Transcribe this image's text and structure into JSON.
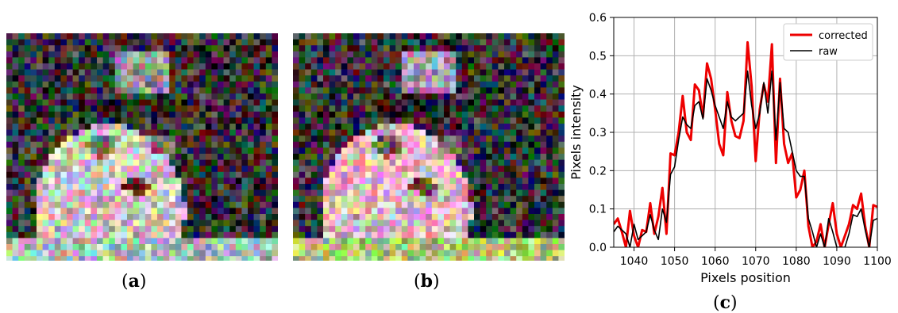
{
  "captions": {
    "a": "a",
    "b": "b",
    "c": "c"
  },
  "images": {
    "a": {
      "description_colors": {
        "bg": "#3b3a3a",
        "face": "#d8cfc6",
        "hat": "#9a9aa0"
      }
    },
    "b": {
      "description_colors": {
        "bg": "#3a3838",
        "face": "#e8c4c8",
        "hat": "#a8a2b4"
      }
    }
  },
  "chart_data": {
    "type": "line",
    "xlabel": "Pixels position",
    "ylabel": "Pixels intensity",
    "xlim": [
      1035,
      1100
    ],
    "ylim": [
      0,
      0.6
    ],
    "xticks": [
      1040,
      1050,
      1060,
      1070,
      1080,
      1090,
      1100
    ],
    "yticks": [
      0.0,
      0.1,
      0.2,
      0.3,
      0.4,
      0.5,
      0.6
    ],
    "grid": true,
    "legend_position": "top-right",
    "x": [
      1035,
      1036,
      1037,
      1038,
      1039,
      1040,
      1041,
      1042,
      1043,
      1044,
      1045,
      1046,
      1047,
      1048,
      1049,
      1050,
      1051,
      1052,
      1053,
      1054,
      1055,
      1056,
      1057,
      1058,
      1059,
      1060,
      1061,
      1062,
      1063,
      1064,
      1065,
      1066,
      1067,
      1068,
      1069,
      1070,
      1071,
      1072,
      1073,
      1074,
      1075,
      1076,
      1077,
      1078,
      1079,
      1080,
      1081,
      1082,
      1083,
      1084,
      1085,
      1086,
      1087,
      1088,
      1089,
      1090,
      1091,
      1092,
      1093,
      1094,
      1095,
      1096,
      1097,
      1098,
      1099,
      1100
    ],
    "series": [
      {
        "name": "corrected",
        "color": "#ee0000",
        "values": [
          0.06,
          0.075,
          0.04,
          0.0,
          0.095,
          0.03,
          0.0,
          0.045,
          0.04,
          0.115,
          0.035,
          0.08,
          0.155,
          0.035,
          0.245,
          0.24,
          0.3,
          0.395,
          0.3,
          0.28,
          0.425,
          0.41,
          0.34,
          0.48,
          0.44,
          0.36,
          0.27,
          0.24,
          0.405,
          0.33,
          0.29,
          0.285,
          0.33,
          0.535,
          0.42,
          0.225,
          0.36,
          0.425,
          0.38,
          0.53,
          0.22,
          0.44,
          0.27,
          0.22,
          0.245,
          0.13,
          0.15,
          0.2,
          0.055,
          0.0,
          0.015,
          0.06,
          0.0,
          0.06,
          0.115,
          0.035,
          0.0,
          0.03,
          0.06,
          0.11,
          0.1,
          0.14,
          0.055,
          0.0,
          0.11,
          0.105
        ]
      },
      {
        "name": "raw",
        "color": "#000000",
        "values": [
          0.04,
          0.055,
          0.045,
          0.035,
          0.0,
          0.06,
          0.02,
          0.03,
          0.04,
          0.085,
          0.045,
          0.02,
          0.1,
          0.065,
          0.19,
          0.21,
          0.28,
          0.34,
          0.32,
          0.31,
          0.37,
          0.38,
          0.335,
          0.44,
          0.41,
          0.37,
          0.34,
          0.31,
          0.38,
          0.34,
          0.33,
          0.34,
          0.35,
          0.46,
          0.37,
          0.31,
          0.35,
          0.43,
          0.35,
          0.46,
          0.28,
          0.43,
          0.31,
          0.3,
          0.25,
          0.2,
          0.185,
          0.185,
          0.075,
          0.04,
          0.0,
          0.035,
          0.0,
          0.075,
          0.04,
          0.0,
          0.0,
          0.0,
          0.035,
          0.085,
          0.08,
          0.1,
          0.045,
          0.0,
          0.07,
          0.075
        ]
      }
    ]
  }
}
